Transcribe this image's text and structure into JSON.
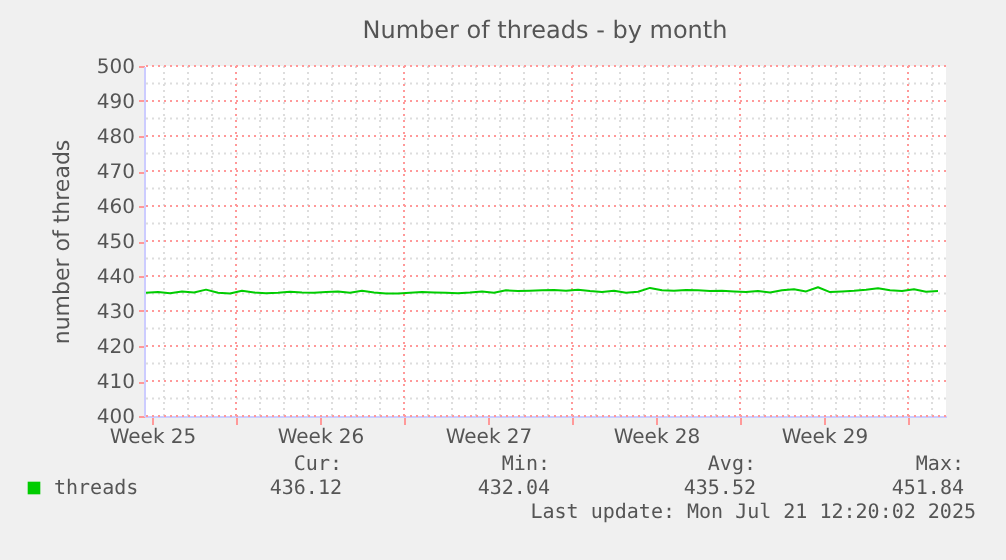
{
  "chart_data": {
    "type": "line",
    "title": "Number of threads - by month",
    "ylabel": "number of threads",
    "x": [
      "2025-06-18T06:00",
      "2025-06-18T18:00",
      "2025-06-19T06:00",
      "2025-06-19T18:00",
      "2025-06-20T06:00",
      "2025-06-20T18:00",
      "2025-06-21T06:00",
      "2025-06-21T18:00",
      "2025-06-22T06:00",
      "2025-06-22T18:00",
      "2025-06-23T06:00",
      "2025-06-23T18:00",
      "2025-06-24T06:00",
      "2025-06-24T18:00",
      "2025-06-25T06:00",
      "2025-06-25T18:00",
      "2025-06-26T06:00",
      "2025-06-26T18:00",
      "2025-06-27T06:00",
      "2025-06-27T18:00",
      "2025-06-28T06:00",
      "2025-06-28T18:00",
      "2025-06-29T06:00",
      "2025-06-29T18:00",
      "2025-06-30T06:00",
      "2025-06-30T18:00",
      "2025-07-01T06:00",
      "2025-07-01T18:00",
      "2025-07-02T06:00",
      "2025-07-02T18:00",
      "2025-07-03T06:00",
      "2025-07-03T18:00",
      "2025-07-04T06:00",
      "2025-07-04T18:00",
      "2025-07-05T06:00",
      "2025-07-05T18:00",
      "2025-07-06T06:00",
      "2025-07-06T18:00",
      "2025-07-07T06:00",
      "2025-07-07T18:00",
      "2025-07-08T06:00",
      "2025-07-08T18:00",
      "2025-07-09T06:00",
      "2025-07-09T18:00",
      "2025-07-10T06:00",
      "2025-07-10T18:00",
      "2025-07-11T06:00",
      "2025-07-11T18:00",
      "2025-07-12T06:00",
      "2025-07-12T18:00",
      "2025-07-13T06:00",
      "2025-07-13T18:00",
      "2025-07-14T06:00",
      "2025-07-14T18:00",
      "2025-07-15T06:00",
      "2025-07-15T18:00",
      "2025-07-16T06:00",
      "2025-07-16T18:00",
      "2025-07-17T06:00",
      "2025-07-17T18:00",
      "2025-07-18T06:00",
      "2025-07-18T18:00",
      "2025-07-19T06:00",
      "2025-07-19T18:00",
      "2025-07-20T06:00",
      "2025-07-20T18:00",
      "2025-07-21T06:00"
    ],
    "series": [
      {
        "name": "threads",
        "color": "#00cc00",
        "values": [
          435.2,
          435.4,
          435.1,
          435.6,
          435.3,
          436.1,
          435.2,
          435.0,
          435.8,
          435.3,
          435.1,
          435.2,
          435.5,
          435.3,
          435.2,
          435.4,
          435.6,
          435.2,
          435.8,
          435.3,
          435.0,
          435.0,
          435.2,
          435.4,
          435.3,
          435.2,
          435.1,
          435.3,
          435.6,
          435.2,
          435.9,
          435.7,
          435.8,
          435.9,
          436.0,
          435.8,
          436.1,
          435.7,
          435.4,
          435.8,
          435.2,
          435.5,
          436.6,
          435.9,
          435.8,
          436.0,
          435.9,
          435.7,
          435.8,
          435.6,
          435.4,
          435.7,
          435.3,
          435.9,
          436.2,
          435.6,
          436.8,
          435.4,
          435.6,
          435.8,
          436.1,
          436.5,
          435.9,
          435.7,
          436.2,
          435.5,
          435.7
        ]
      }
    ],
    "xlim": [
      "2025-06-18T04:00",
      "2025-07-21T14:00"
    ],
    "xticks": [
      {
        "value": "2025-06-18T12:00",
        "label": "Week 25"
      },
      {
        "value": "2025-06-22T00:00",
        "label": null
      },
      {
        "value": "2025-06-25T12:00",
        "label": "Week 26"
      },
      {
        "value": "2025-06-29T00:00",
        "label": null
      },
      {
        "value": "2025-07-02T12:00",
        "label": "Week 27"
      },
      {
        "value": "2025-07-06T00:00",
        "label": null
      },
      {
        "value": "2025-07-09T12:00",
        "label": "Week 28"
      },
      {
        "value": "2025-07-13T00:00",
        "label": null
      },
      {
        "value": "2025-07-16T12:00",
        "label": "Week 29"
      },
      {
        "value": "2025-07-20T00:00",
        "label": null
      }
    ],
    "ylim": [
      400,
      500
    ],
    "yticks": [
      400,
      410,
      420,
      430,
      440,
      450,
      460,
      470,
      480,
      490,
      500
    ],
    "grid": true,
    "legend": "bottom left",
    "marker": "none",
    "line_style": "solid",
    "annotations": [
      "Cur:",
      "436.12",
      "Min:",
      "432.04",
      "Avg:",
      "435.52",
      "Max:",
      "451.84",
      "Last update: Mon Jul 21 12:20:02 2025"
    ]
  }
}
